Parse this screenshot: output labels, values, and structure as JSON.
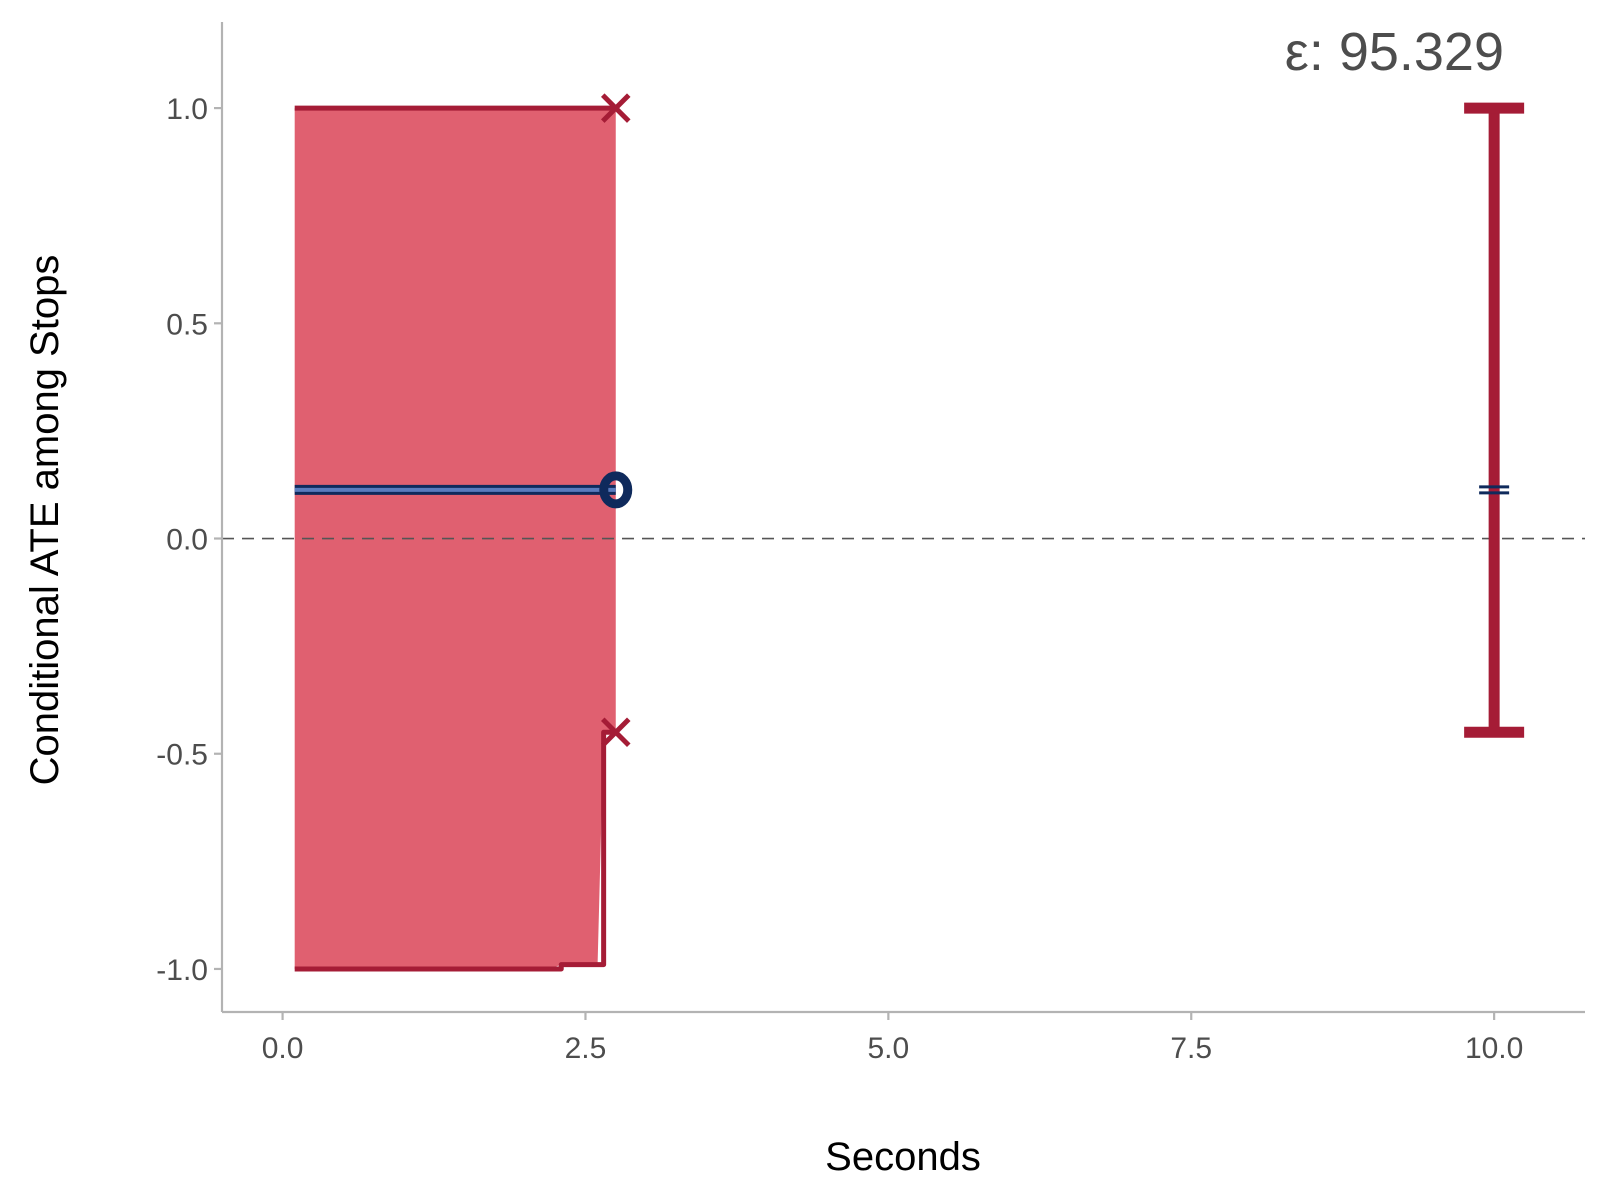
{
  "chart_data": {
    "type": "line",
    "title": "",
    "xlabel": "Seconds",
    "ylabel": "Conditional ATE among Stops",
    "xlim": [
      -0.5,
      10.75
    ],
    "ylim": [
      -1.1,
      1.2
    ],
    "x_ticks": [
      0,
      2.5,
      5,
      7.5,
      10
    ],
    "x_tick_labels": [
      "0.0",
      "2.5",
      "5.0",
      "7.5",
      "10.0"
    ],
    "y_ticks": [
      -1,
      -0.5,
      0,
      0.5,
      1
    ],
    "y_tick_labels": [
      "-1.0",
      "-0.5",
      "0.0",
      "0.5",
      "1.0"
    ],
    "grid": false,
    "reference_line": {
      "y": 0,
      "style": "dashed",
      "color": "#555555"
    },
    "annotation": {
      "text": "ε: 95.329",
      "x": 9.2,
      "y": 1.11
    },
    "ribbon": {
      "color": "#e06070",
      "x": [
        0.1,
        2.2,
        2.3,
        2.6,
        2.65,
        2.75
      ],
      "upper": [
        1.0,
        1.0,
        1.0,
        1.0,
        1.0,
        1.0
      ],
      "lower": [
        -1.0,
        -1.0,
        -0.99,
        -0.99,
        -0.45,
        -0.45
      ]
    },
    "series": [
      {
        "role": "upper_bound",
        "color": "#a51c36",
        "x": [
          0.1,
          2.75
        ],
        "y": [
          1.0,
          1.0
        ]
      },
      {
        "role": "lower_bound",
        "color": "#a51c36",
        "step": true,
        "x": [
          0.1,
          2.3,
          2.6,
          2.65,
          2.75
        ],
        "y": [
          -1.0,
          -0.99,
          -0.99,
          -0.45,
          -0.45
        ]
      },
      {
        "role": "estimate",
        "color": "#0f2a5c",
        "x": [
          0.1,
          2.75
        ],
        "y": [
          0.113,
          0.113
        ]
      }
    ],
    "end_markers": [
      {
        "shape": "x",
        "x": 2.75,
        "y": 1.0,
        "color": "#a51c36"
      },
      {
        "shape": "x",
        "x": 2.75,
        "y": -0.45,
        "color": "#a51c36"
      },
      {
        "shape": "circle",
        "x": 2.75,
        "y": 0.113,
        "color": "#0f2a5c"
      }
    ],
    "interval": {
      "x": 10.0,
      "lower": -0.45,
      "upper": 1.0,
      "estimate": 0.113,
      "color": "#a51c36",
      "estimate_color": "#0f2a5c"
    }
  }
}
